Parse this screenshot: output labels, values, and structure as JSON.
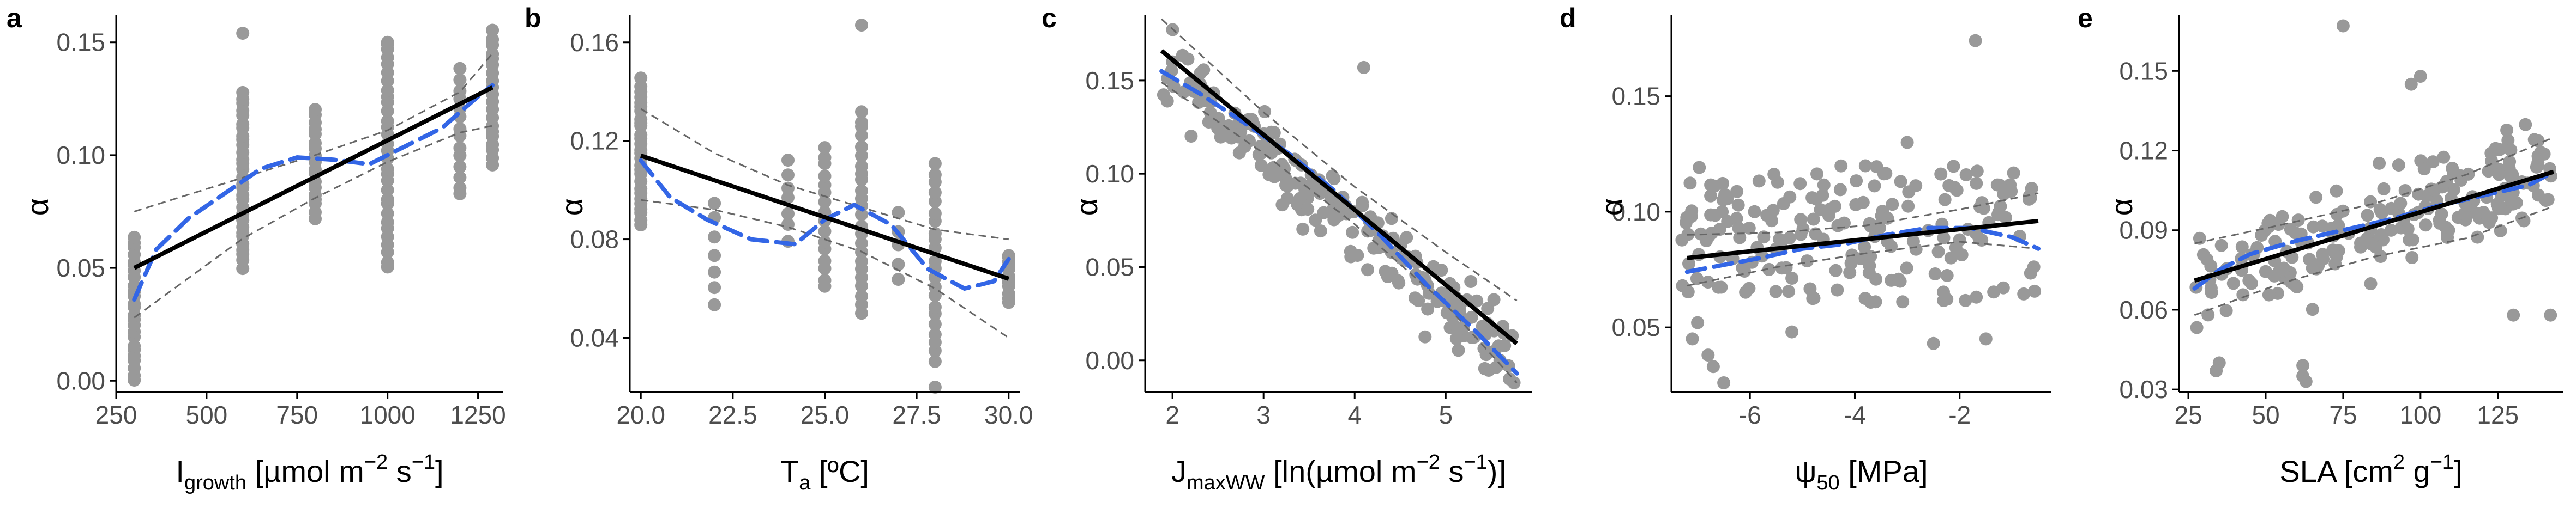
{
  "figure": {
    "colors": {
      "points": "#999999",
      "fit": "#000000",
      "loess": "#3366e6",
      "ci": "#666666",
      "axis": "#000000"
    }
  },
  "chart_data": [
    {
      "type": "scatter",
      "panel_label": "a",
      "xlabel_parts": [
        "I",
        "growth",
        " [µmol m",
        "−2",
        " s",
        "−1",
        "]"
      ],
      "ylabel": "α",
      "xlim": [
        250,
        1320
      ],
      "ylim": [
        -0.005,
        0.162
      ],
      "xticks": [
        250,
        500,
        750,
        1000,
        1250
      ],
      "xtick_labels": [
        "250",
        "500",
        "750",
        "1000",
        "1250"
      ],
      "yticks": [
        0.0,
        0.05,
        0.1,
        0.15
      ],
      "ytick_labels": [
        "0.00",
        "0.05",
        "0.10",
        "0.15"
      ],
      "regression": {
        "x": [
          300,
          1290
        ],
        "y": [
          0.05,
          0.13
        ]
      },
      "ci_upper": {
        "x": [
          300,
          600,
          800,
          1000,
          1200,
          1290
        ],
        "y": [
          0.075,
          0.09,
          0.1,
          0.111,
          0.128,
          0.145
        ]
      },
      "ci_lower": {
        "x": [
          300,
          600,
          800,
          1000,
          1200,
          1290
        ],
        "y": [
          0.028,
          0.063,
          0.081,
          0.097,
          0.11,
          0.113
        ]
      },
      "loess": {
        "x": [
          300,
          360,
          450,
          550,
          650,
          750,
          850,
          950,
          1050,
          1150,
          1250,
          1290
        ],
        "y": [
          0.036,
          0.058,
          0.072,
          0.083,
          0.094,
          0.099,
          0.098,
          0.096,
          0.104,
          0.112,
          0.126,
          0.131
        ]
      },
      "clusters": [
        {
          "x": 300,
          "n": 25,
          "min": 0.0,
          "max": 0.064
        },
        {
          "x": 600,
          "n": 30,
          "min": 0.05,
          "max": 0.128
        },
        {
          "x": 800,
          "n": 18,
          "min": 0.072,
          "max": 0.12
        },
        {
          "x": 1000,
          "n": 30,
          "min": 0.05,
          "max": 0.15
        },
        {
          "x": 1200,
          "n": 14,
          "min": 0.082,
          "max": 0.138
        },
        {
          "x": 1290,
          "n": 20,
          "min": 0.095,
          "max": 0.155
        }
      ],
      "extra_points": {
        "x": [
          600,
          1000
        ],
        "y": [
          0.154,
          0.15
        ]
      }
    },
    {
      "type": "scatter",
      "panel_label": "b",
      "xlabel_parts": [
        "T",
        "a",
        " [ºC]"
      ],
      "ylabel": "α",
      "xlim": [
        19.7,
        30.3
      ],
      "ylim": [
        0.018,
        0.171
      ],
      "xticks": [
        20.0,
        22.5,
        25.0,
        27.5,
        30.0
      ],
      "xtick_labels": [
        "20.0",
        "22.5",
        "25.0",
        "27.5",
        "30.0"
      ],
      "yticks": [
        0.04,
        0.08,
        0.12,
        0.16
      ],
      "ytick_labels": [
        "0.04",
        "0.08",
        "0.12",
        "0.16"
      ],
      "regression": {
        "x": [
          20,
          30
        ],
        "y": [
          0.114,
          0.064
        ]
      },
      "ci_upper": {
        "x": [
          20,
          22,
          24,
          26,
          28,
          30
        ],
        "y": [
          0.133,
          0.115,
          0.102,
          0.093,
          0.084,
          0.08
        ]
      },
      "ci_lower": {
        "x": [
          20,
          22,
          24,
          26,
          28,
          30
        ],
        "y": [
          0.096,
          0.092,
          0.085,
          0.075,
          0.06,
          0.04
        ]
      },
      "loess": {
        "x": [
          20,
          20.8,
          21.8,
          23,
          24.2,
          25,
          25.8,
          26.8,
          27.8,
          28.8,
          29.6,
          30
        ],
        "y": [
          0.112,
          0.097,
          0.088,
          0.08,
          0.078,
          0.088,
          0.094,
          0.086,
          0.068,
          0.06,
          0.063,
          0.072
        ]
      },
      "clusters": [
        {
          "x": 20,
          "n": 28,
          "min": 0.086,
          "max": 0.145
        },
        {
          "x": 22,
          "n": 7,
          "min": 0.053,
          "max": 0.095
        },
        {
          "x": 24,
          "n": 7,
          "min": 0.08,
          "max": 0.112
        },
        {
          "x": 25,
          "n": 16,
          "min": 0.06,
          "max": 0.118
        },
        {
          "x": 26,
          "n": 24,
          "min": 0.05,
          "max": 0.132
        },
        {
          "x": 27,
          "n": 5,
          "min": 0.064,
          "max": 0.09
        },
        {
          "x": 28,
          "n": 22,
          "min": 0.03,
          "max": 0.11
        },
        {
          "x": 30,
          "n": 12,
          "min": 0.055,
          "max": 0.074
        }
      ],
      "extra_points": {
        "x": [
          26,
          28
        ],
        "y": [
          0.167,
          0.02
        ]
      }
    },
    {
      "type": "scatter",
      "panel_label": "c",
      "xlabel_parts": [
        "J",
        "maxWW",
        " [ln(µmol m",
        "−2",
        " s",
        "−1",
        ")]"
      ],
      "ylabel": "α",
      "xlim": [
        1.7,
        5.95
      ],
      "ylim": [
        -0.017,
        0.185
      ],
      "xticks": [
        2,
        3,
        4,
        5
      ],
      "xtick_labels": [
        "2",
        "3",
        "4",
        "5"
      ],
      "yticks": [
        0.0,
        0.05,
        0.1,
        0.15
      ],
      "ytick_labels": [
        "0.00",
        "0.05",
        "0.10",
        "0.15"
      ],
      "regression": {
        "x": [
          1.88,
          5.78
        ],
        "y": [
          0.166,
          0.009
        ]
      },
      "ci_upper": {
        "x": [
          1.88,
          3,
          4,
          5,
          5.78
        ],
        "y": [
          0.183,
          0.133,
          0.093,
          0.058,
          0.032
        ]
      },
      "ci_lower": {
        "x": [
          1.88,
          3,
          4,
          5,
          5.78
        ],
        "y": [
          0.149,
          0.111,
          0.073,
          0.03,
          -0.012
        ]
      },
      "loess": {
        "x": [
          1.88,
          2.3,
          2.8,
          3.3,
          3.8,
          4.3,
          4.8,
          5.3,
          5.78
        ],
        "y": [
          0.155,
          0.143,
          0.127,
          0.11,
          0.09,
          0.066,
          0.04,
          0.017,
          -0.007
        ]
      },
      "scatter_line": {
        "x0": 1.9,
        "y0": 0.158,
        "x1": 5.75,
        "y1": 0.002,
        "n": 210,
        "sd": 0.017
      },
      "extra_points": {
        "x": [
          4.1,
          2.0,
          5.7,
          5.75
        ],
        "y": [
          0.157,
          0.16,
          -0.01,
          -0.012
        ]
      }
    },
    {
      "type": "scatter",
      "panel_label": "d",
      "xlabel_parts": [
        "ψ",
        "50",
        " [MPa]"
      ],
      "ylabel": "α",
      "xlim": [
        -7.5,
        -0.25
      ],
      "ylim": [
        0.022,
        0.185
      ],
      "xticks": [
        -6,
        -4,
        -2
      ],
      "xtick_labels": [
        "-6",
        "-4",
        "-2"
      ],
      "yticks": [
        0.05,
        0.1,
        0.15
      ],
      "ytick_labels": [
        "0.05",
        "0.10",
        "0.15"
      ],
      "regression": {
        "x": [
          -7.2,
          -0.5
        ],
        "y": [
          0.08,
          0.096
        ]
      },
      "ci_upper": {
        "x": [
          -7.2,
          -5.5,
          -3.8,
          -2,
          -0.5
        ],
        "y": [
          0.09,
          0.091,
          0.094,
          0.101,
          0.108
        ]
      },
      "ci_lower": {
        "x": [
          -7.2,
          -5.5,
          -3.8,
          -2,
          -0.5
        ],
        "y": [
          0.068,
          0.076,
          0.082,
          0.087,
          0.084
        ]
      },
      "loess": {
        "x": [
          -7.2,
          -6.5,
          -5.8,
          -5,
          -4.2,
          -3.4,
          -2.6,
          -1.8,
          -1.0,
          -0.5
        ],
        "y": [
          0.074,
          0.077,
          0.08,
          0.084,
          0.086,
          0.09,
          0.093,
          0.093,
          0.089,
          0.084
        ]
      },
      "scatter_uniform": {
        "xmin": -7.3,
        "xmax": -0.5,
        "ymin": 0.06,
        "ymax": 0.12,
        "n": 190
      },
      "extra_points": {
        "x": [
          -1.7,
          -6.5,
          -6.7,
          -7.1,
          -2.5,
          -1.5,
          -7.0,
          -6.8,
          -5.2,
          -3.0
        ],
        "y": [
          0.174,
          0.026,
          0.033,
          0.045,
          0.043,
          0.045,
          0.052,
          0.038,
          0.048,
          0.13
        ]
      }
    },
    {
      "type": "scatter",
      "panel_label": "e",
      "xlabel_parts": [
        "SLA  [cm",
        "2",
        " g",
        "−1",
        "]"
      ],
      "ylabel": "α",
      "xlim": [
        22,
        146
      ],
      "ylim": [
        0.029,
        0.171
      ],
      "xticks": [
        25,
        50,
        75,
        100,
        125
      ],
      "xtick_labels": [
        "25",
        "50",
        "75",
        "100",
        "125"
      ],
      "yticks": [
        0.03,
        0.06,
        0.09,
        0.12,
        0.15
      ],
      "ytick_labels": [
        "0.03",
        "0.06",
        "0.09",
        "0.12",
        "0.15"
      ],
      "regression": {
        "x": [
          27,
          143
        ],
        "y": [
          0.071,
          0.112
        ]
      },
      "ci_upper": {
        "x": [
          27,
          55,
          85,
          115,
          143
        ],
        "y": [
          0.085,
          0.092,
          0.1,
          0.111,
          0.125
        ]
      },
      "ci_lower": {
        "x": [
          27,
          55,
          85,
          115,
          143
        ],
        "y": [
          0.058,
          0.07,
          0.08,
          0.087,
          0.099
        ]
      },
      "loess": {
        "x": [
          27,
          35,
          45,
          60,
          75,
          90,
          105,
          120,
          135,
          143
        ],
        "y": [
          0.068,
          0.075,
          0.081,
          0.086,
          0.09,
          0.094,
          0.099,
          0.103,
          0.107,
          0.112
        ]
      },
      "scatter_line": {
        "x0": 27,
        "y0": 0.068,
        "x1": 143,
        "y1": 0.114,
        "n": 200,
        "sd": 0.016
      },
      "extra_points": {
        "x": [
          75,
          62,
          62,
          63,
          35,
          34,
          130,
          142,
          100,
          97
        ],
        "y": [
          0.167,
          0.035,
          0.039,
          0.033,
          0.04,
          0.037,
          0.058,
          0.058,
          0.148,
          0.145
        ]
      }
    }
  ]
}
